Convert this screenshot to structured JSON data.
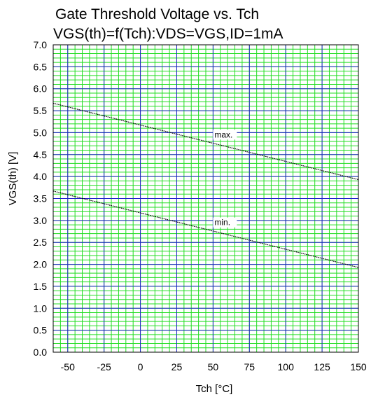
{
  "chart_data": {
    "type": "line",
    "title": "Gate Threshold Voltage vs. Tch",
    "subtitle": "VGS(th)=f(Tch):VDS=VGS,ID=1mA",
    "xlabel": "Tch [°C]",
    "ylabel": "VGS(th) [V]",
    "xlim": [
      -60,
      150
    ],
    "ylim": [
      0,
      7
    ],
    "x_ticks": [
      "-50",
      "-25",
      "0",
      "25",
      "50",
      "75",
      "100",
      "125",
      "150"
    ],
    "y_ticks": [
      "0.0",
      "0.5",
      "1.0",
      "1.5",
      "2.0",
      "2.5",
      "3.0",
      "3.5",
      "4.0",
      "4.5",
      "5.0",
      "5.5",
      "6.0",
      "6.5",
      "7.0"
    ],
    "x_tick_values": [
      -50,
      -25,
      0,
      25,
      50,
      75,
      100,
      125,
      150
    ],
    "y_tick_values": [
      0,
      0.5,
      1,
      1.5,
      2,
      2.5,
      3,
      3.5,
      4,
      4.5,
      5,
      5.5,
      6,
      6.5,
      7
    ],
    "grid": true,
    "series": [
      {
        "name": "max.",
        "x": [
          -60,
          150
        ],
        "y": [
          5.67,
          3.93
        ]
      },
      {
        "name": "min.",
        "x": [
          -60,
          150
        ],
        "y": [
          3.67,
          1.93
        ]
      }
    ],
    "annotations": [
      {
        "text": "max.",
        "x": 50,
        "y": 4.97
      },
      {
        "text": "min.",
        "x": 50,
        "y": 2.97
      }
    ],
    "colors": {
      "major_grid": "#2222cc",
      "minor_grid": "#22dd22",
      "series": "#000000",
      "frame": "#000000"
    }
  }
}
